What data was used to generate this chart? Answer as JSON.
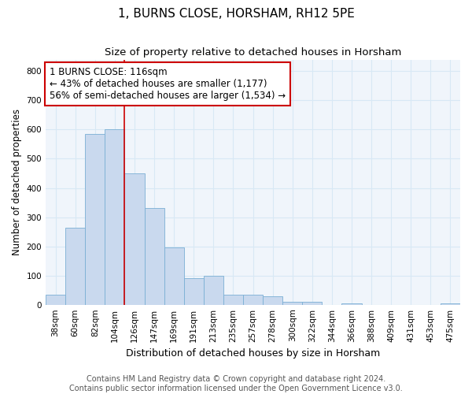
{
  "title": "1, BURNS CLOSE, HORSHAM, RH12 5PE",
  "subtitle": "Size of property relative to detached houses in Horsham",
  "xlabel": "Distribution of detached houses by size in Horsham",
  "ylabel": "Number of detached properties",
  "categories": [
    "38sqm",
    "60sqm",
    "82sqm",
    "104sqm",
    "126sqm",
    "147sqm",
    "169sqm",
    "191sqm",
    "213sqm",
    "235sqm",
    "257sqm",
    "278sqm",
    "300sqm",
    "322sqm",
    "344sqm",
    "366sqm",
    "388sqm",
    "409sqm",
    "431sqm",
    "453sqm",
    "475sqm"
  ],
  "values": [
    35,
    265,
    585,
    600,
    450,
    330,
    195,
    90,
    100,
    35,
    35,
    30,
    10,
    10,
    0,
    5,
    0,
    0,
    0,
    0,
    5
  ],
  "bar_color": "#c9d9ee",
  "bar_edge_color": "#7aafd4",
  "grid_color": "#d8e8f5",
  "vline_x_index": 4,
  "vline_color": "#cc0000",
  "annotation_text": "1 BURNS CLOSE: 116sqm\n← 43% of detached houses are smaller (1,177)\n56% of semi-detached houses are larger (1,534) →",
  "annotation_box_color": "#ffffff",
  "annotation_border_color": "#cc0000",
  "ylim": [
    0,
    840
  ],
  "yticks": [
    0,
    100,
    200,
    300,
    400,
    500,
    600,
    700,
    800
  ],
  "footer": "Contains HM Land Registry data © Crown copyright and database right 2024.\nContains public sector information licensed under the Open Government Licence v3.0.",
  "title_fontsize": 11,
  "subtitle_fontsize": 9.5,
  "annotation_fontsize": 8.5,
  "footer_fontsize": 7,
  "ylabel_fontsize": 8.5,
  "xlabel_fontsize": 9,
  "tick_fontsize": 7.5
}
